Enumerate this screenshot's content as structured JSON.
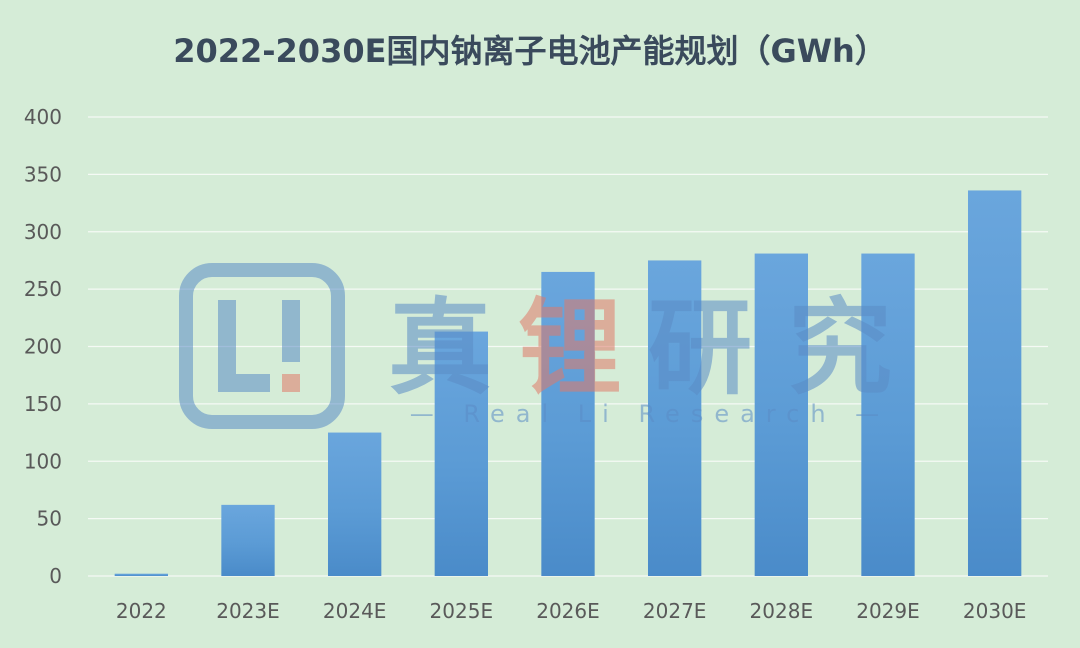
{
  "chart_data": {
    "type": "bar",
    "title": "2022-2030E国内钠离子电池产能规划（GWh）",
    "categories": [
      "2022",
      "2023E",
      "2024E",
      "2025E",
      "2026E",
      "2027E",
      "2028E",
      "2029E",
      "2030E"
    ],
    "values": [
      2,
      62,
      125,
      213,
      265,
      275,
      281,
      281,
      336
    ],
    "ylim": [
      0,
      400
    ],
    "yticks": [
      0,
      50,
      100,
      150,
      200,
      250,
      300,
      350,
      400
    ],
    "xlabel": "",
    "ylabel": "",
    "grid": true,
    "bar_color": "#5b9bd5",
    "background_color": "#d5ecd7"
  },
  "watermark": {
    "logo_text": "Li",
    "cn_text": "真锂研究",
    "en_text": "— Real Li Research —",
    "color": "#5b8cc6",
    "accent_color": "#e07a6a"
  }
}
